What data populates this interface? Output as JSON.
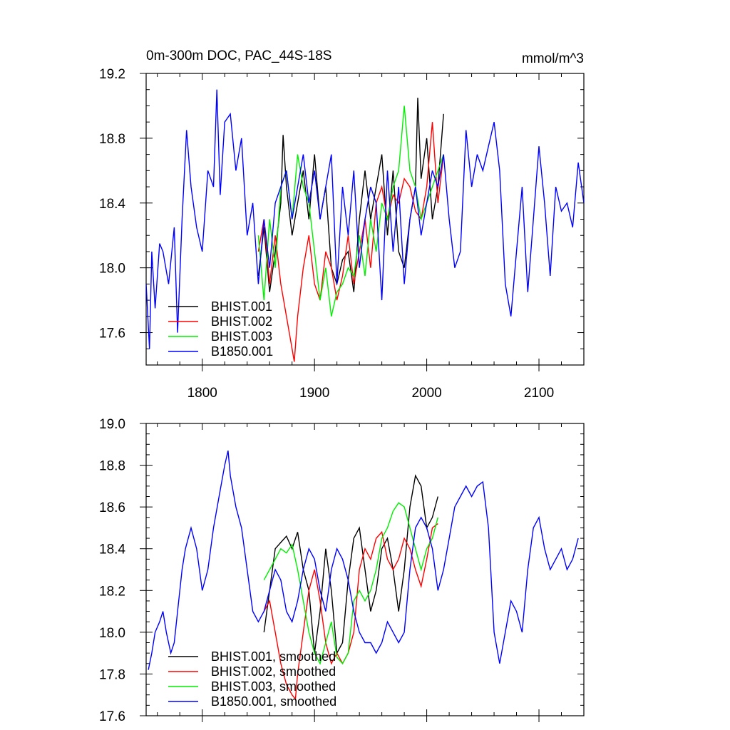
{
  "chart_data": [
    {
      "type": "line",
      "title": "0m-300m DOC, PAC_44S-18S",
      "units": "mmol/m^3",
      "xlim": [
        1750,
        2140
      ],
      "ylim": [
        17.4,
        19.2
      ],
      "xticks": [
        1800,
        1900,
        2000,
        2100
      ],
      "yticks": [
        17.6,
        18.0,
        18.4,
        18.8,
        19.2
      ],
      "xticklabels": [
        "1800",
        "1900",
        "2000",
        "2100"
      ],
      "yticklabels": [
        "17.6",
        "18.0",
        "18.4",
        "18.8",
        "19.2"
      ],
      "legend_position": "lower-left",
      "series": [
        {
          "name": "BHIST.001",
          "color": "#000000",
          "x": [
            1850,
            1855,
            1860,
            1865,
            1870,
            1872,
            1875,
            1880,
            1885,
            1890,
            1895,
            1900,
            1905,
            1910,
            1915,
            1920,
            1925,
            1930,
            1935,
            1940,
            1945,
            1950,
            1955,
            1960,
            1965,
            1970,
            1975,
            1980,
            1985,
            1990,
            1992,
            1995,
            2000,
            2005,
            2010,
            2015
          ],
          "y": [
            17.95,
            18.25,
            17.85,
            18.1,
            18.4,
            18.82,
            18.5,
            18.2,
            18.4,
            18.6,
            18.3,
            18.7,
            18.3,
            18.5,
            18.0,
            17.9,
            18.05,
            18.1,
            17.85,
            18.3,
            18.6,
            18.3,
            18.5,
            18.7,
            18.2,
            18.6,
            18.1,
            18.0,
            18.3,
            18.5,
            19.05,
            18.55,
            18.8,
            18.3,
            18.5,
            18.95
          ]
        },
        {
          "name": "BHIST.002",
          "color": "#ff0000",
          "x": [
            1850,
            1855,
            1860,
            1865,
            1870,
            1875,
            1880,
            1882,
            1885,
            1890,
            1895,
            1900,
            1905,
            1910,
            1915,
            1920,
            1925,
            1930,
            1935,
            1940,
            1945,
            1950,
            1955,
            1960,
            1965,
            1970,
            1975,
            1980,
            1985,
            1990,
            1995,
            2000,
            2005,
            2010,
            2015
          ],
          "y": [
            18.1,
            18.3,
            17.9,
            18.2,
            17.9,
            17.7,
            17.5,
            17.42,
            17.7,
            18.0,
            18.2,
            17.9,
            17.8,
            18.1,
            18.0,
            17.8,
            17.95,
            18.2,
            17.9,
            18.1,
            18.3,
            18.0,
            18.4,
            18.5,
            18.3,
            18.45,
            18.4,
            18.55,
            18.5,
            18.35,
            18.3,
            18.5,
            18.9,
            18.4,
            18.7
          ]
        },
        {
          "name": "BHIST.003",
          "color": "#00ee00",
          "x": [
            1850,
            1855,
            1860,
            1865,
            1870,
            1875,
            1880,
            1885,
            1890,
            1895,
            1900,
            1905,
            1910,
            1915,
            1920,
            1925,
            1930,
            1935,
            1940,
            1945,
            1950,
            1955,
            1960,
            1965,
            1970,
            1975,
            1980,
            1985,
            1990,
            1995,
            2000,
            2005,
            2010,
            2015
          ],
          "y": [
            18.2,
            17.8,
            18.3,
            18.0,
            18.5,
            18.6,
            18.3,
            18.7,
            18.5,
            18.4,
            18.1,
            17.8,
            18.0,
            17.7,
            17.85,
            17.9,
            18.0,
            17.95,
            18.2,
            17.95,
            18.3,
            18.1,
            18.4,
            18.3,
            18.5,
            18.6,
            19.0,
            18.6,
            18.5,
            18.3,
            18.4,
            18.5,
            18.6,
            18.7
          ]
        },
        {
          "name": "B1850.001",
          "color": "#0000ff",
          "x": [
            1750,
            1753,
            1755,
            1758,
            1762,
            1765,
            1770,
            1775,
            1778,
            1782,
            1786,
            1790,
            1795,
            1800,
            1805,
            1810,
            1813,
            1816,
            1820,
            1825,
            1830,
            1835,
            1840,
            1845,
            1850,
            1855,
            1860,
            1865,
            1870,
            1875,
            1880,
            1885,
            1890,
            1895,
            1900,
            1905,
            1910,
            1915,
            1920,
            1925,
            1930,
            1935,
            1940,
            1945,
            1950,
            1955,
            1960,
            1965,
            1970,
            1975,
            1980,
            1985,
            1990,
            1995,
            2000,
            2005,
            2010,
            2015,
            2020,
            2025,
            2030,
            2035,
            2040,
            2045,
            2050,
            2055,
            2060,
            2065,
            2070,
            2075,
            2080,
            2085,
            2090,
            2095,
            2100,
            2105,
            2110,
            2115,
            2120,
            2125,
            2130,
            2135,
            2140
          ],
          "y": [
            17.9,
            17.5,
            18.1,
            17.75,
            18.15,
            18.1,
            17.9,
            18.25,
            17.6,
            18.3,
            18.85,
            18.5,
            18.25,
            18.1,
            18.6,
            18.5,
            19.1,
            18.45,
            18.9,
            18.95,
            18.6,
            18.8,
            18.2,
            18.4,
            17.9,
            18.3,
            18.0,
            18.4,
            18.5,
            18.6,
            18.3,
            18.5,
            18.7,
            18.4,
            18.6,
            18.3,
            18.5,
            18.7,
            17.9,
            18.5,
            18.2,
            18.6,
            18.0,
            18.3,
            18.5,
            18.4,
            17.8,
            18.6,
            18.1,
            18.5,
            17.9,
            18.3,
            18.5,
            18.2,
            18.4,
            18.6,
            18.5,
            18.7,
            18.3,
            18.0,
            18.1,
            18.85,
            18.5,
            18.7,
            18.6,
            18.75,
            18.9,
            18.6,
            17.9,
            17.7,
            18.1,
            18.5,
            17.85,
            18.3,
            18.75,
            18.4,
            17.95,
            18.5,
            18.35,
            18.4,
            18.25,
            18.65,
            18.4
          ]
        }
      ]
    },
    {
      "type": "line",
      "title": "",
      "xlim": [
        1750,
        2140
      ],
      "ylim": [
        17.6,
        19.0
      ],
      "xticks": [
        1800,
        1900,
        2000,
        2100
      ],
      "yticks": [
        17.6,
        17.8,
        18.0,
        18.2,
        18.4,
        18.6,
        18.8,
        19.0
      ],
      "yticklabels": [
        "17.6",
        "17.8",
        "18.0",
        "18.2",
        "18.4",
        "18.6",
        "18.8",
        "19.0"
      ],
      "legend_position": "lower-left",
      "series": [
        {
          "name": "BHIST.001, smoothed",
          "color": "#000000",
          "x": [
            1855,
            1860,
            1865,
            1870,
            1875,
            1880,
            1885,
            1890,
            1895,
            1900,
            1905,
            1910,
            1915,
            1920,
            1925,
            1930,
            1935,
            1940,
            1945,
            1950,
            1955,
            1960,
            1965,
            1970,
            1975,
            1980,
            1985,
            1990,
            1995,
            2000,
            2005,
            2010
          ],
          "y": [
            18.0,
            18.2,
            18.4,
            18.43,
            18.46,
            18.4,
            18.48,
            18.3,
            18.2,
            17.9,
            18.1,
            18.4,
            18.2,
            17.9,
            17.95,
            18.25,
            18.45,
            18.5,
            18.3,
            18.1,
            18.2,
            18.4,
            18.45,
            18.3,
            18.1,
            18.3,
            18.6,
            18.75,
            18.7,
            18.5,
            18.55,
            18.65
          ]
        },
        {
          "name": "BHIST.002, smoothed",
          "color": "#ff0000",
          "x": [
            1855,
            1860,
            1865,
            1870,
            1875,
            1880,
            1883,
            1885,
            1890,
            1895,
            1900,
            1905,
            1910,
            1915,
            1920,
            1925,
            1930,
            1935,
            1940,
            1945,
            1950,
            1955,
            1960,
            1965,
            1970,
            1975,
            1980,
            1985,
            1990,
            1995,
            2000,
            2005,
            2010
          ],
          "y": [
            18.1,
            18.15,
            18.0,
            17.85,
            17.75,
            17.7,
            17.68,
            17.8,
            18.0,
            18.2,
            18.3,
            18.15,
            17.95,
            17.85,
            17.9,
            17.85,
            17.9,
            18.0,
            18.3,
            18.4,
            18.35,
            18.45,
            18.48,
            18.35,
            18.3,
            18.35,
            18.45,
            18.4,
            18.3,
            18.22,
            18.35,
            18.5,
            18.52
          ]
        },
        {
          "name": "BHIST.003, smoothed",
          "color": "#00ee00",
          "x": [
            1855,
            1860,
            1865,
            1870,
            1875,
            1880,
            1885,
            1890,
            1895,
            1900,
            1905,
            1910,
            1915,
            1920,
            1925,
            1930,
            1935,
            1940,
            1945,
            1950,
            1955,
            1960,
            1965,
            1970,
            1975,
            1980,
            1985,
            1990,
            1995,
            2000,
            2005,
            2010
          ],
          "y": [
            18.25,
            18.3,
            18.35,
            18.4,
            18.38,
            18.42,
            18.3,
            18.15,
            18.0,
            17.9,
            17.85,
            17.95,
            18.05,
            17.88,
            17.85,
            17.9,
            18.15,
            18.2,
            18.15,
            18.2,
            18.3,
            18.45,
            18.5,
            18.58,
            18.62,
            18.6,
            18.5,
            18.4,
            18.3,
            18.4,
            18.45,
            18.55
          ]
        },
        {
          "name": "B1850.001, smoothed",
          "color": "#0000ff",
          "x": [
            1752,
            1755,
            1758,
            1762,
            1765,
            1768,
            1772,
            1775,
            1778,
            1782,
            1785,
            1790,
            1795,
            1800,
            1805,
            1810,
            1815,
            1820,
            1823,
            1825,
            1830,
            1835,
            1840,
            1845,
            1850,
            1855,
            1860,
            1865,
            1870,
            1875,
            1880,
            1885,
            1890,
            1895,
            1900,
            1905,
            1910,
            1915,
            1920,
            1925,
            1930,
            1935,
            1940,
            1945,
            1950,
            1955,
            1960,
            1965,
            1970,
            1975,
            1980,
            1985,
            1990,
            1995,
            2000,
            2005,
            2010,
            2015,
            2020,
            2025,
            2030,
            2035,
            2040,
            2045,
            2050,
            2055,
            2060,
            2065,
            2070,
            2075,
            2080,
            2085,
            2090,
            2095,
            2100,
            2105,
            2110,
            2115,
            2120,
            2125,
            2130,
            2135
          ],
          "y": [
            17.82,
            17.9,
            18.0,
            18.05,
            18.1,
            18.0,
            17.9,
            17.95,
            18.1,
            18.3,
            18.4,
            18.5,
            18.4,
            18.2,
            18.3,
            18.5,
            18.65,
            18.8,
            18.87,
            18.75,
            18.6,
            18.5,
            18.3,
            18.1,
            18.05,
            18.1,
            18.2,
            18.3,
            18.25,
            18.1,
            18.05,
            18.15,
            18.3,
            18.4,
            18.35,
            18.2,
            18.1,
            18.3,
            18.4,
            18.35,
            18.25,
            18.1,
            18.0,
            17.95,
            17.95,
            17.9,
            17.95,
            18.05,
            18.0,
            17.95,
            18.0,
            18.3,
            18.5,
            18.55,
            18.5,
            18.4,
            18.2,
            18.3,
            18.45,
            18.6,
            18.65,
            18.7,
            18.65,
            18.7,
            18.72,
            18.5,
            18.0,
            17.85,
            18.0,
            18.15,
            18.1,
            18.0,
            18.3,
            18.5,
            18.55,
            18.4,
            18.3,
            18.35,
            18.4,
            18.3,
            18.35,
            18.45
          ]
        }
      ]
    }
  ]
}
